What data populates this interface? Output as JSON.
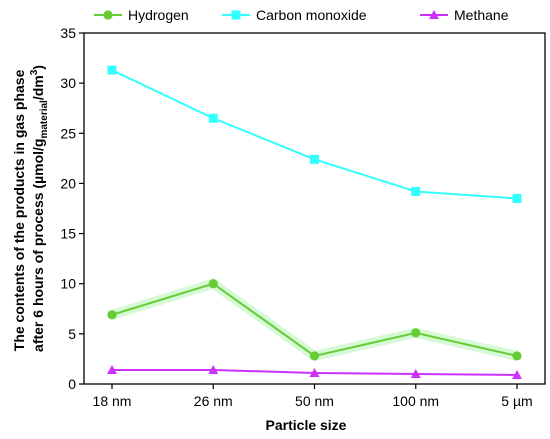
{
  "chart_data": {
    "type": "line",
    "categories": [
      "18 nm",
      "26 nm",
      "50 nm",
      "100 nm",
      "5 µm"
    ],
    "series": [
      {
        "name": "Hydrogen",
        "values": [
          6.9,
          10.0,
          2.8,
          5.1,
          2.8
        ],
        "color": "#66cc33",
        "marker": "circle"
      },
      {
        "name": "Carbon monoxide",
        "values": [
          31.3,
          26.5,
          22.4,
          19.2,
          18.5
        ],
        "color": "#33ffff",
        "marker": "square"
      },
      {
        "name": "Methane",
        "values": [
          1.4,
          1.4,
          1.1,
          1.0,
          0.9
        ],
        "color": "#cc33ff",
        "marker": "triangle"
      }
    ],
    "xlabel": "Particle size",
    "ylabel": {
      "line1": "The contents of the products in gas phase",
      "line2_prefix": "after 6 hours of process (µmol/g",
      "line2_sub": "material",
      "line2_mid": "/dm",
      "line2_sup": "3",
      "line2_suffix": ")"
    },
    "ylim": [
      0,
      35
    ],
    "yticks": [
      0,
      5,
      10,
      15,
      20,
      25,
      30,
      35
    ],
    "grid": false,
    "legend_position": "top"
  }
}
